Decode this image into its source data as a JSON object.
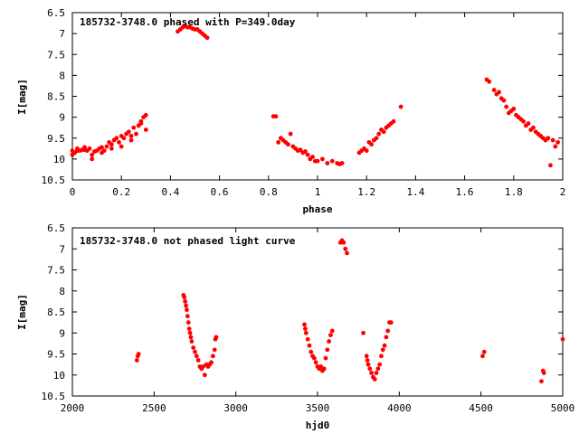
{
  "chart_data": [
    {
      "type": "scatter",
      "title": "185732-3748.0 phased with P=349.0day",
      "xlabel": "phase",
      "ylabel": "I[mag]",
      "xlim": [
        0,
        2
      ],
      "ylim": [
        10.5,
        6.5
      ],
      "y_inverted": true,
      "xticks": [
        0,
        0.2,
        0.4,
        0.6,
        0.8,
        1,
        1.2,
        1.4,
        1.6,
        1.8,
        2
      ],
      "xtick_labels": [
        "0",
        "0.2",
        "0.4",
        "0.6",
        "0.8",
        "1",
        "1.2",
        "1.4",
        "1.6",
        "1.8",
        "2"
      ],
      "yticks": [
        6.5,
        7,
        7.5,
        8,
        8.5,
        9,
        9.5,
        10,
        10.5
      ],
      "ytick_labels": [
        "6.5",
        "7",
        "7.5",
        "8",
        "8.5",
        "9",
        "9.5",
        "10",
        "10.5"
      ],
      "grid": false,
      "color": "#ff0000",
      "series": [
        {
          "x": [
            0.0,
            0.01,
            0.02,
            0.03,
            0.04,
            0.05,
            0.06,
            0.07,
            0.08,
            0.09,
            0.1,
            0.11,
            0.12,
            0.13,
            0.14,
            0.15,
            0.16,
            0.17,
            0.18,
            0.19,
            0.2,
            0.21,
            0.22,
            0.23,
            0.24,
            0.25,
            0.26,
            0.27,
            0.28,
            0.29,
            0.3,
            0.0,
            0.02,
            0.05,
            0.08,
            0.12,
            0.16,
            0.2,
            0.24,
            0.28,
            0.3,
            0.43,
            0.44,
            0.45,
            0.46,
            0.47,
            0.48,
            0.49,
            0.5,
            0.51,
            0.52,
            0.53,
            0.54,
            0.55,
            0.82,
            0.83,
            0.84,
            0.85,
            0.86,
            0.87,
            0.88,
            0.89,
            0.9,
            0.91,
            0.92,
            0.93,
            0.94,
            0.95,
            0.96,
            0.97,
            0.98,
            0.99,
            1.0,
            1.02,
            1.04,
            1.06,
            1.08,
            1.09,
            1.1,
            1.17,
            1.18,
            1.19,
            1.2,
            1.21,
            1.22,
            1.23,
            1.24,
            1.25,
            1.26,
            1.27,
            1.28,
            1.29,
            1.3,
            1.31,
            1.34,
            1.69,
            1.7,
            1.72,
            1.73,
            1.74,
            1.75,
            1.76,
            1.77,
            1.78,
            1.79,
            1.8,
            1.81,
            1.82,
            1.83,
            1.84,
            1.85,
            1.86,
            1.87,
            1.88,
            1.89,
            1.9,
            1.91,
            1.92,
            1.93,
            1.94,
            1.95,
            1.96,
            1.97,
            1.98
          ],
          "y": [
            9.8,
            9.85,
            9.75,
            9.8,
            9.78,
            9.72,
            9.8,
            9.75,
            9.9,
            9.82,
            9.8,
            9.75,
            9.72,
            9.8,
            9.7,
            9.6,
            9.65,
            9.55,
            9.5,
            9.6,
            9.45,
            9.5,
            9.4,
            9.35,
            9.45,
            9.25,
            9.4,
            9.2,
            9.1,
            9.0,
            8.95,
            9.9,
            9.8,
            9.78,
            10.0,
            9.85,
            9.75,
            9.7,
            9.55,
            9.15,
            9.3,
            6.95,
            6.9,
            6.85,
            6.82,
            6.85,
            6.85,
            6.88,
            6.9,
            6.9,
            6.95,
            7.0,
            7.05,
            7.1,
            8.98,
            8.98,
            9.6,
            9.5,
            9.55,
            9.6,
            9.65,
            9.4,
            9.7,
            9.75,
            9.8,
            9.78,
            9.85,
            9.82,
            9.9,
            10.0,
            9.95,
            10.05,
            10.05,
            10.0,
            10.1,
            10.05,
            10.1,
            10.12,
            10.1,
            9.85,
            9.8,
            9.75,
            9.8,
            9.6,
            9.65,
            9.55,
            9.5,
            9.4,
            9.3,
            9.35,
            9.25,
            9.2,
            9.15,
            9.1,
            8.75,
            8.1,
            8.15,
            8.35,
            8.45,
            8.4,
            8.55,
            8.6,
            8.75,
            8.9,
            8.85,
            8.8,
            8.95,
            9.0,
            9.05,
            9.1,
            9.2,
            9.15,
            9.3,
            9.25,
            9.35,
            9.4,
            9.45,
            9.5,
            9.55,
            9.5,
            10.15,
            9.55,
            9.7,
            9.6
          ]
        }
      ]
    },
    {
      "type": "scatter",
      "title": "185732-3748.0 not phased light curve",
      "xlabel": "hjd0",
      "ylabel": "I[mag]",
      "xlim": [
        2000,
        5000
      ],
      "ylim": [
        10.5,
        6.5
      ],
      "y_inverted": true,
      "xticks": [
        2000,
        2500,
        3000,
        3500,
        4000,
        4500,
        5000
      ],
      "xtick_labels": [
        "2000",
        "2500",
        "3000",
        "3500",
        "4000",
        "4500",
        "5000"
      ],
      "yticks": [
        6.5,
        7,
        7.5,
        8,
        8.5,
        9,
        9.5,
        10,
        10.5
      ],
      "ytick_labels": [
        "6.5",
        "7",
        "7.5",
        "8",
        "8.5",
        "9",
        "9.5",
        "10",
        "10.5"
      ],
      "grid": false,
      "color": "#ff0000",
      "series": [
        {
          "x": [
            2395,
            2400,
            2405,
            2680,
            2685,
            2690,
            2695,
            2700,
            2705,
            2710,
            2715,
            2720,
            2725,
            2730,
            2740,
            2750,
            2760,
            2770,
            2780,
            2790,
            2800,
            2810,
            2820,
            2830,
            2840,
            2850,
            2860,
            2870,
            2875,
            2880,
            3420,
            3425,
            3430,
            3440,
            3450,
            3460,
            3470,
            3480,
            3490,
            3500,
            3510,
            3520,
            3530,
            3540,
            3550,
            3560,
            3570,
            3580,
            3590,
            3640,
            3650,
            3660,
            3670,
            3680,
            3780,
            3800,
            3805,
            3810,
            3820,
            3830,
            3840,
            3850,
            3860,
            3870,
            3880,
            3890,
            3900,
            3910,
            3920,
            3930,
            3940,
            3950,
            4510,
            4520,
            4870,
            4880,
            4885,
            5000
          ],
          "y": [
            9.65,
            9.55,
            9.5,
            8.1,
            8.15,
            8.25,
            8.35,
            8.45,
            8.6,
            8.75,
            8.9,
            9.0,
            9.1,
            9.2,
            9.35,
            9.45,
            9.55,
            9.65,
            9.8,
            9.85,
            9.8,
            10.0,
            9.75,
            9.8,
            9.75,
            9.7,
            9.55,
            9.4,
            9.15,
            9.1,
            8.8,
            8.9,
            9.0,
            9.15,
            9.3,
            9.45,
            9.55,
            9.6,
            9.7,
            9.8,
            9.85,
            9.8,
            9.9,
            9.85,
            9.6,
            9.4,
            9.2,
            9.05,
            8.95,
            6.85,
            6.8,
            6.85,
            7.0,
            7.1,
            9.0,
            9.55,
            9.65,
            9.75,
            9.85,
            9.95,
            10.05,
            10.1,
            9.95,
            9.85,
            9.75,
            9.55,
            9.4,
            9.3,
            9.1,
            8.95,
            8.75,
            8.75,
            9.55,
            9.45,
            10.15,
            9.9,
            9.95,
            9.15
          ]
        }
      ]
    }
  ]
}
